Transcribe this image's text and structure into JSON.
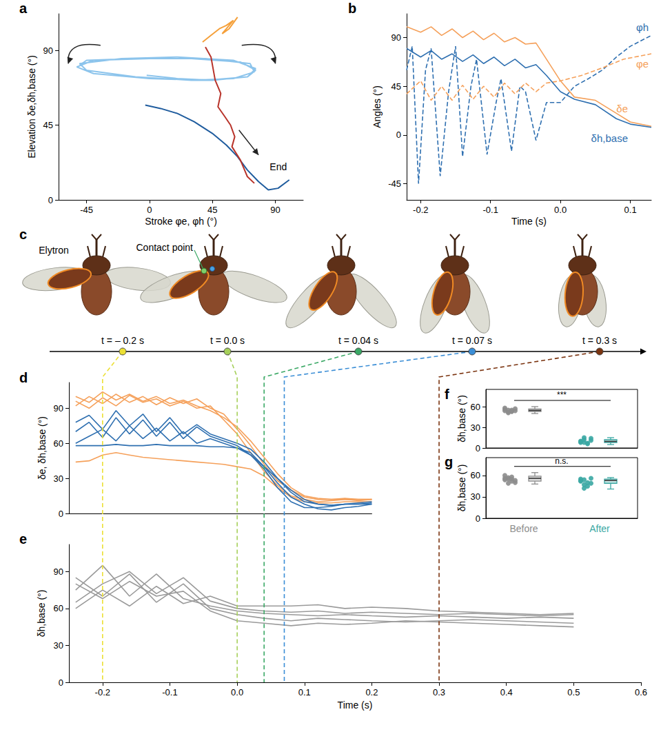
{
  "chart_data": [
    {
      "panel": "a",
      "type": "line",
      "xlabel": "Stroke φe, φh (°)",
      "ylabel": "Elevation δe,δh,base (°)",
      "xlim": [
        -65,
        110
      ],
      "xticks": [
        -45,
        0,
        45,
        90
      ],
      "ylim": [
        0,
        112
      ],
      "yticks": [
        0,
        45,
        90
      ],
      "grid": false,
      "series": [
        {
          "color": "#8cc4ec",
          "x": [
            -2,
            20,
            45,
            70,
            76,
            60,
            20,
            -20,
            -50,
            -45,
            -10,
            30,
            60,
            75,
            72,
            40,
            0,
            -40,
            -52,
            -40,
            0,
            40,
            70,
            76,
            65,
            30,
            -10,
            -45,
            -50
          ],
          "values": [
            75,
            73,
            72,
            74,
            79,
            84,
            86,
            85,
            82,
            78,
            74,
            72,
            73,
            77,
            82,
            85,
            85,
            84,
            80,
            76,
            73,
            72,
            74,
            78,
            83,
            85,
            85,
            84,
            81
          ]
        },
        {
          "color": "#1f5c9e",
          "x": [
            -3,
            8,
            20,
            32,
            45,
            55,
            63,
            70,
            78,
            85,
            92,
            100
          ],
          "values": [
            57,
            55,
            52,
            47,
            40,
            33,
            26,
            18,
            11,
            6,
            7,
            12
          ]
        },
        {
          "color": "#b8332a",
          "x": [
            40,
            44,
            47,
            51,
            49,
            54,
            58,
            61,
            59,
            65,
            70,
            75
          ],
          "values": [
            92,
            86,
            72,
            64,
            56,
            50,
            45,
            38,
            32,
            24,
            14,
            10
          ]
        },
        {
          "color": "#f5a03a",
          "x": [
            38,
            44,
            50,
            55,
            60,
            52,
            57,
            63
          ],
          "values": [
            95,
            99,
            103,
            105,
            108,
            100,
            103,
            110
          ]
        }
      ],
      "annotations": [
        {
          "text": "End",
          "x": 86,
          "y": 20
        }
      ]
    },
    {
      "panel": "b",
      "type": "line",
      "xlabel": "Time (s)",
      "ylabel": "Angles (°)",
      "xlim": [
        -0.22,
        0.13
      ],
      "xticks": [
        -0.2,
        -0.1,
        {
          "value": 0,
          "label": "0.0"
        },
        0.1
      ],
      "ylim": [
        -60,
        112
      ],
      "yticks": [
        -45,
        0,
        45,
        90
      ],
      "grid": false,
      "series": [
        {
          "name": "φh",
          "color": "#2e6fb0",
          "line_style": "dashed",
          "x": [
            -0.22,
            -0.212,
            -0.203,
            -0.193,
            -0.185,
            -0.172,
            -0.16,
            -0.15,
            -0.14,
            -0.128,
            -0.12,
            -0.105,
            -0.092,
            -0.085,
            -0.07,
            -0.058,
            -0.05,
            -0.035,
            -0.02,
            0.0,
            0.02,
            0.04,
            0.06,
            0.08,
            0.1,
            0.13
          ],
          "values": [
            60,
            82,
            -45,
            60,
            80,
            -38,
            40,
            82,
            -20,
            45,
            70,
            -18,
            30,
            52,
            -15,
            45,
            40,
            -5,
            30,
            30,
            45,
            52,
            60,
            72,
            82,
            92
          ]
        },
        {
          "name": "φe",
          "color": "#f5a05a",
          "line_style": "dashed",
          "x": [
            -0.22,
            -0.2,
            -0.185,
            -0.17,
            -0.155,
            -0.14,
            -0.125,
            -0.11,
            -0.095,
            -0.08,
            -0.065,
            -0.05,
            -0.035,
            -0.02,
            0,
            0.03,
            0.06,
            0.09,
            0.13
          ],
          "values": [
            38,
            50,
            32,
            45,
            32,
            46,
            33,
            45,
            35,
            48,
            38,
            48,
            40,
            48,
            50,
            55,
            62,
            70,
            75
          ]
        },
        {
          "name": "δe",
          "color": "#f5a05a",
          "line_style": "solid",
          "x": [
            -0.22,
            -0.2,
            -0.185,
            -0.17,
            -0.155,
            -0.14,
            -0.125,
            -0.11,
            -0.095,
            -0.08,
            -0.065,
            -0.05,
            -0.035,
            -0.02,
            0,
            0.02,
            0.05,
            0.08,
            0.1,
            0.13
          ],
          "values": [
            100,
            95,
            100,
            92,
            98,
            90,
            96,
            88,
            94,
            86,
            90,
            84,
            85,
            70,
            50,
            35,
            32,
            20,
            12,
            8
          ]
        },
        {
          "name": "δh,base",
          "color": "#2e6fb0",
          "line_style": "solid",
          "x": [
            -0.22,
            -0.2,
            -0.185,
            -0.17,
            -0.155,
            -0.14,
            -0.125,
            -0.11,
            -0.095,
            -0.08,
            -0.065,
            -0.05,
            -0.035,
            -0.02,
            0,
            0.02,
            0.05,
            0.08,
            0.1,
            0.13
          ],
          "values": [
            80,
            72,
            78,
            70,
            75,
            68,
            74,
            66,
            72,
            64,
            70,
            62,
            65,
            55,
            40,
            33,
            28,
            15,
            10,
            7
          ]
        }
      ]
    },
    {
      "panel": "d",
      "type": "line",
      "ylabel": "δe, δh,base (°)",
      "xlim": [
        -0.25,
        0.2
      ],
      "ylim": [
        0,
        112
      ],
      "yticks": [
        0,
        30,
        60,
        90
      ],
      "grid": false,
      "tick_labels": "y",
      "x": [
        -0.24,
        -0.22,
        -0.2,
        -0.18,
        -0.16,
        -0.14,
        -0.12,
        -0.1,
        -0.08,
        -0.06,
        -0.04,
        -0.02,
        0,
        0.02,
        0.04,
        0.06,
        0.08,
        0.1,
        0.12,
        0.14,
        0.16,
        0.18,
        0.2
      ],
      "series": [
        {
          "color": "#f5a05a",
          "values": [
            92,
            100,
            94,
            102,
            95,
            100,
            93,
            99,
            94,
            98,
            90,
            85,
            72,
            58,
            42,
            28,
            20,
            14,
            12,
            12,
            12,
            11,
            12
          ]
        },
        {
          "color": "#f5a05a",
          "values": [
            96,
            90,
            99,
            92,
            101,
            95,
            98,
            92,
            96,
            90,
            92,
            80,
            68,
            52,
            36,
            24,
            15,
            12,
            10,
            11,
            12,
            12,
            12
          ]
        },
        {
          "color": "#f5a05a",
          "values": [
            100,
            95,
            104,
            97,
            102,
            96,
            100,
            94,
            97,
            92,
            88,
            82,
            74,
            62,
            48,
            34,
            22,
            15,
            13,
            12,
            13,
            12,
            12
          ]
        },
        {
          "color": "#f5a05a",
          "values": [
            44,
            45,
            50,
            52,
            50,
            48,
            47,
            46,
            45,
            44,
            43,
            42,
            40,
            38,
            32,
            22,
            14,
            10,
            9,
            9,
            10,
            10,
            10
          ]
        },
        {
          "color": "#2e6fb0",
          "values": [
            70,
            78,
            65,
            82,
            68,
            80,
            66,
            78,
            64,
            74,
            66,
            62,
            58,
            50,
            38,
            22,
            10,
            5,
            5,
            6,
            8,
            8,
            9
          ]
        },
        {
          "color": "#2e6fb0",
          "values": [
            60,
            66,
            72,
            62,
            75,
            64,
            73,
            62,
            70,
            60,
            64,
            60,
            56,
            52,
            40,
            26,
            14,
            8,
            4,
            3,
            5,
            6,
            8
          ]
        },
        {
          "color": "#2e6fb0",
          "values": [
            78,
            84,
            72,
            88,
            75,
            85,
            70,
            82,
            68,
            76,
            68,
            64,
            60,
            55,
            44,
            30,
            18,
            10,
            8,
            7,
            8,
            9,
            10
          ]
        },
        {
          "color": "#2e6fb0",
          "values": [
            58,
            58,
            58,
            59,
            58,
            58,
            59,
            58,
            58,
            58,
            57,
            57,
            56,
            50,
            40,
            30,
            20,
            12,
            8,
            7,
            8,
            8,
            8
          ]
        }
      ]
    },
    {
      "panel": "e",
      "type": "line",
      "xlabel": "Time (s)",
      "ylabel": "δh,base (°)",
      "xlim": [
        -0.25,
        0.6
      ],
      "xticks": [
        -0.2,
        -0.1,
        {
          "value": 0,
          "label": "0.0"
        },
        0.1,
        0.2,
        0.3,
        0.4,
        0.5,
        0.6
      ],
      "ylim": [
        0,
        112
      ],
      "yticks": [
        0,
        30,
        60,
        90
      ],
      "grid": false,
      "x": [
        -0.24,
        -0.2,
        -0.16,
        -0.12,
        -0.08,
        -0.04,
        0,
        0.04,
        0.08,
        0.12,
        0.16,
        0.2,
        0.25,
        0.3,
        0.35,
        0.4,
        0.45,
        0.5
      ],
      "series": [
        {
          "color": "#9a9a9a",
          "values": [
            75,
            95,
            70,
            88,
            68,
            62,
            58,
            56,
            55,
            54,
            55,
            54,
            53,
            54,
            53,
            52,
            53,
            52
          ]
        },
        {
          "color": "#9a9a9a",
          "values": [
            65,
            80,
            90,
            72,
            85,
            66,
            60,
            58,
            57,
            58,
            56,
            57,
            56,
            55,
            56,
            55,
            54,
            55
          ]
        },
        {
          "color": "#9a9a9a",
          "values": [
            85,
            70,
            88,
            65,
            80,
            60,
            55,
            52,
            50,
            52,
            51,
            50,
            49,
            50,
            51,
            50,
            49,
            48
          ]
        },
        {
          "color": "#9a9a9a",
          "values": [
            60,
            75,
            62,
            78,
            64,
            70,
            62,
            62,
            62,
            63,
            60,
            61,
            60,
            58,
            57,
            56,
            55,
            56
          ]
        },
        {
          "color": "#9a9a9a",
          "values": [
            80,
            68,
            82,
            70,
            74,
            58,
            50,
            48,
            46,
            48,
            47,
            48,
            50,
            49,
            48,
            47,
            46,
            45
          ]
        }
      ]
    },
    {
      "panel": "f",
      "type": "box",
      "ylabel": "δh,base (°)",
      "categories": [
        "Before",
        "After"
      ],
      "colors": [
        "#8c8c8c",
        "#3aa7a3"
      ],
      "ylim": [
        0,
        85
      ],
      "yticks": [
        0,
        30,
        60
      ],
      "grid": false,
      "tick_labels": "y",
      "points": [
        [
          58,
          55,
          53,
          54,
          56,
          52,
          55,
          57,
          54,
          51,
          53
        ],
        [
          10,
          8,
          7,
          14,
          9,
          12,
          6,
          11,
          8,
          15
        ]
      ],
      "box": [
        [
          50,
          53,
          54.5,
          56.5,
          60
        ],
        [
          5,
          8,
          9.5,
          12,
          15
        ]
      ],
      "annotation": "***"
    },
    {
      "panel": "g",
      "type": "box",
      "ylabel": "δh,base (°)",
      "categories": [
        "Before",
        "After"
      ],
      "colors": [
        "#8c8c8c",
        "#3aa7a3"
      ],
      "ylim": [
        0,
        85
      ],
      "yticks": [
        0,
        30,
        60
      ],
      "grid": false,
      "points": [
        [
          60,
          55,
          52,
          50,
          54,
          57,
          58,
          53,
          56,
          49,
          55
        ],
        [
          55,
          54,
          50,
          49,
          52,
          42,
          45,
          56,
          53,
          47
        ]
      ],
      "box": [
        [
          48,
          52,
          56,
          59,
          64
        ],
        [
          41,
          49,
          53,
          55,
          57
        ]
      ],
      "annotation": "n.s."
    }
  ],
  "timeline": {
    "panel": "c",
    "elytron_label": "Elytron",
    "contact_label": "Contact point",
    "points": [
      {
        "value": -0.2,
        "label": "t = – 0.2 s",
        "color": "#ece034"
      },
      {
        "value": 0,
        "label": "t = 0.0 s",
        "color": "#a6d05a"
      },
      {
        "value": 0.04,
        "label": "t = 0.04 s",
        "color": "#3aa865"
      },
      {
        "value": 0.07,
        "label": "t = 0.07 s",
        "color": "#3b8ed6"
      },
      {
        "value": 0.3,
        "label": "t = 0.3 s",
        "color": "#7b3410"
      }
    ]
  }
}
